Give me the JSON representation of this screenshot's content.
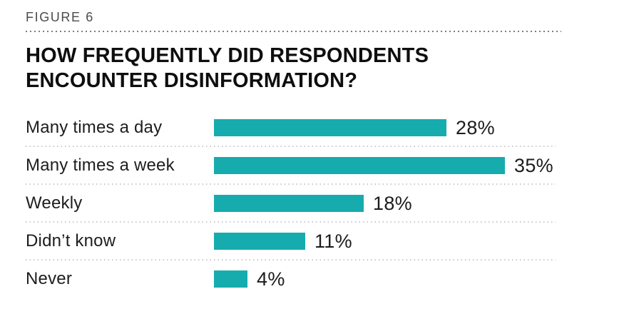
{
  "header": {
    "figure_label": "FIGURE 6"
  },
  "chart_data": {
    "type": "bar",
    "orientation": "horizontal",
    "title": "HOW FREQUENTLY DID RESPONDENTS ENCOUNTER DISINFORMATION?",
    "categories": [
      "Many times a day",
      "Many times a week",
      "Weekly",
      "Didn’t know",
      "Never"
    ],
    "values": [
      28,
      35,
      18,
      11,
      4
    ],
    "value_labels": [
      "28%",
      "35%",
      "18%",
      "11%",
      "4%"
    ],
    "value_suffix": "%",
    "xlim": [
      0,
      38
    ],
    "axes_visible": false,
    "grid": false,
    "legend": false,
    "bar_color": "#16ACAD",
    "separator_color": "#cacaca",
    "header_rule_color": "#7d7d7d",
    "title_color": "#0e0e0e",
    "label_color": "#1d1d1f",
    "figure_label_color": "#4b4b4d"
  }
}
